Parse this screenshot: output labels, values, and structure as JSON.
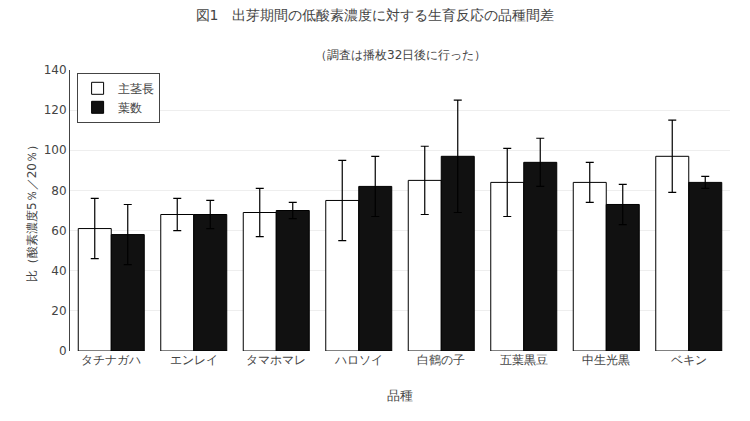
{
  "chart_data": {
    "type": "bar",
    "title": "図1　出芽期間の低酸素濃度に対する生育反応の品種間差",
    "subtitle": "（調査は播枚32日後に行った）",
    "xlabel": "品種",
    "ylabel": "比（酸素濃度5％／20％）",
    "categories": [
      "タチナガハ",
      "エンレイ",
      "タマホマレ",
      "ハロソイ",
      "白鶴の子",
      "五葉黒豆",
      "中生光黒",
      "ベキン"
    ],
    "series": [
      {
        "name": "主茎長",
        "color": "#ffffff",
        "values": [
          61,
          68,
          69,
          75,
          85,
          84,
          84,
          97
        ],
        "errors": [
          15,
          8,
          12,
          20,
          17,
          17,
          10,
          18
        ]
      },
      {
        "name": "葉数",
        "color": "#111111",
        "values": [
          58,
          68,
          70,
          82,
          97,
          94,
          73,
          84
        ],
        "errors": [
          15,
          7,
          4,
          15,
          28,
          12,
          10,
          3
        ]
      }
    ],
    "ylim": [
      0,
      140
    ],
    "yticks": [
      0,
      20,
      40,
      60,
      80,
      100,
      120,
      140
    ],
    "grid": true,
    "legend": "upper left"
  }
}
